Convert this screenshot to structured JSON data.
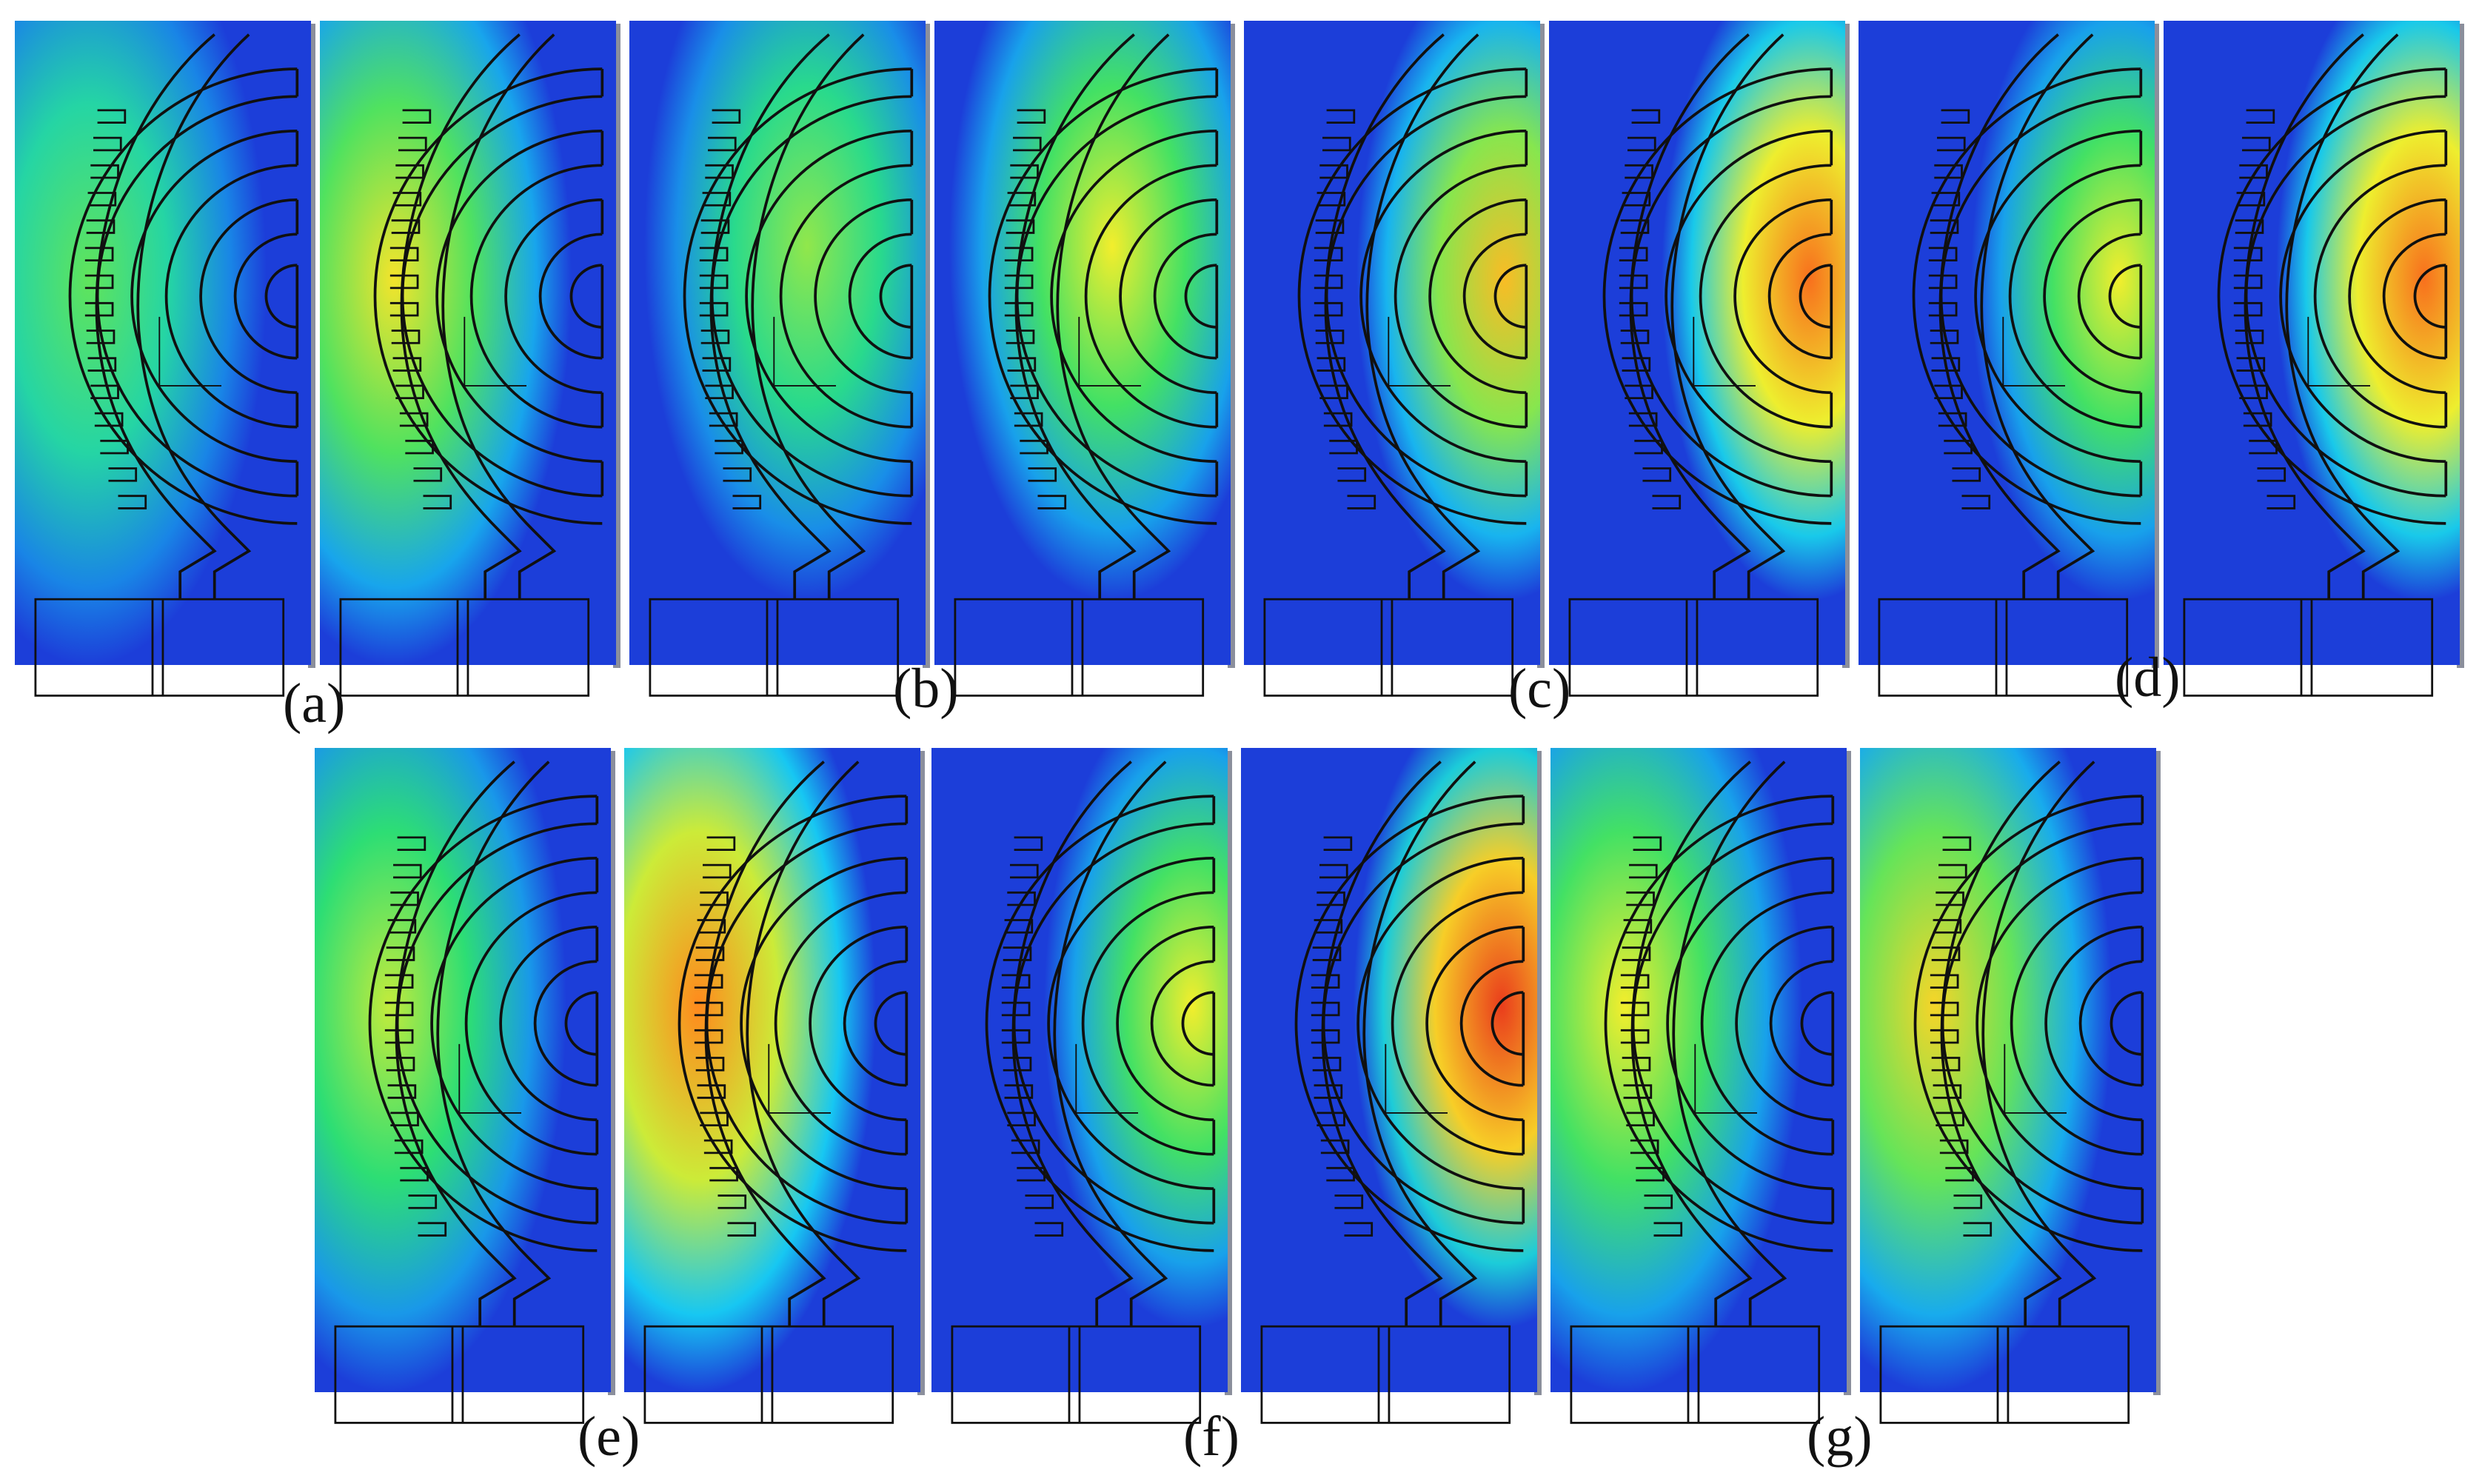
{
  "figure": {
    "captions": [
      "(a)",
      "(b)",
      "(c)",
      "(d)",
      "(e)",
      "(f)",
      "(g)"
    ]
  },
  "colors": {
    "background": "#ffffff",
    "panel_edge": "#8b8f9c",
    "field_low": "#1c2fd6",
    "field_mid_low": "#17c7f2",
    "field_mid": "#2fe06a",
    "field_mid_high": "#f3ee2c",
    "field_high": "#ff8a1d",
    "field_max": "#e3231c",
    "outline": "#101010"
  },
  "panels": [
    {
      "group": "a",
      "hotspot": "left-arc",
      "intensity": 0.45
    },
    {
      "group": "a",
      "hotspot": "left-arc",
      "intensity": 0.62
    },
    {
      "group": "b",
      "hotspot": "middle-arcs",
      "intensity": 0.5
    },
    {
      "group": "b",
      "hotspot": "middle-arcs",
      "intensity": 0.6
    },
    {
      "group": "c",
      "hotspot": "right-rings",
      "intensity": 0.7
    },
    {
      "group": "c",
      "hotspot": "right-rings",
      "intensity": 0.85
    },
    {
      "group": "d",
      "hotspot": "right-rings",
      "intensity": 0.6
    },
    {
      "group": "d",
      "hotspot": "right-rings",
      "intensity": 0.85
    },
    {
      "group": "e",
      "hotspot": "left-arc",
      "intensity": 0.55
    },
    {
      "group": "e",
      "hotspot": "left-arc",
      "intensity": 0.8
    },
    {
      "group": "f",
      "hotspot": "right-rings",
      "intensity": 0.6
    },
    {
      "group": "f",
      "hotspot": "right-rings",
      "intensity": 0.95
    },
    {
      "group": "g",
      "hotspot": "left-arc",
      "intensity": 0.6
    },
    {
      "group": "g",
      "hotspot": "left-arc",
      "intensity": 0.65
    }
  ]
}
